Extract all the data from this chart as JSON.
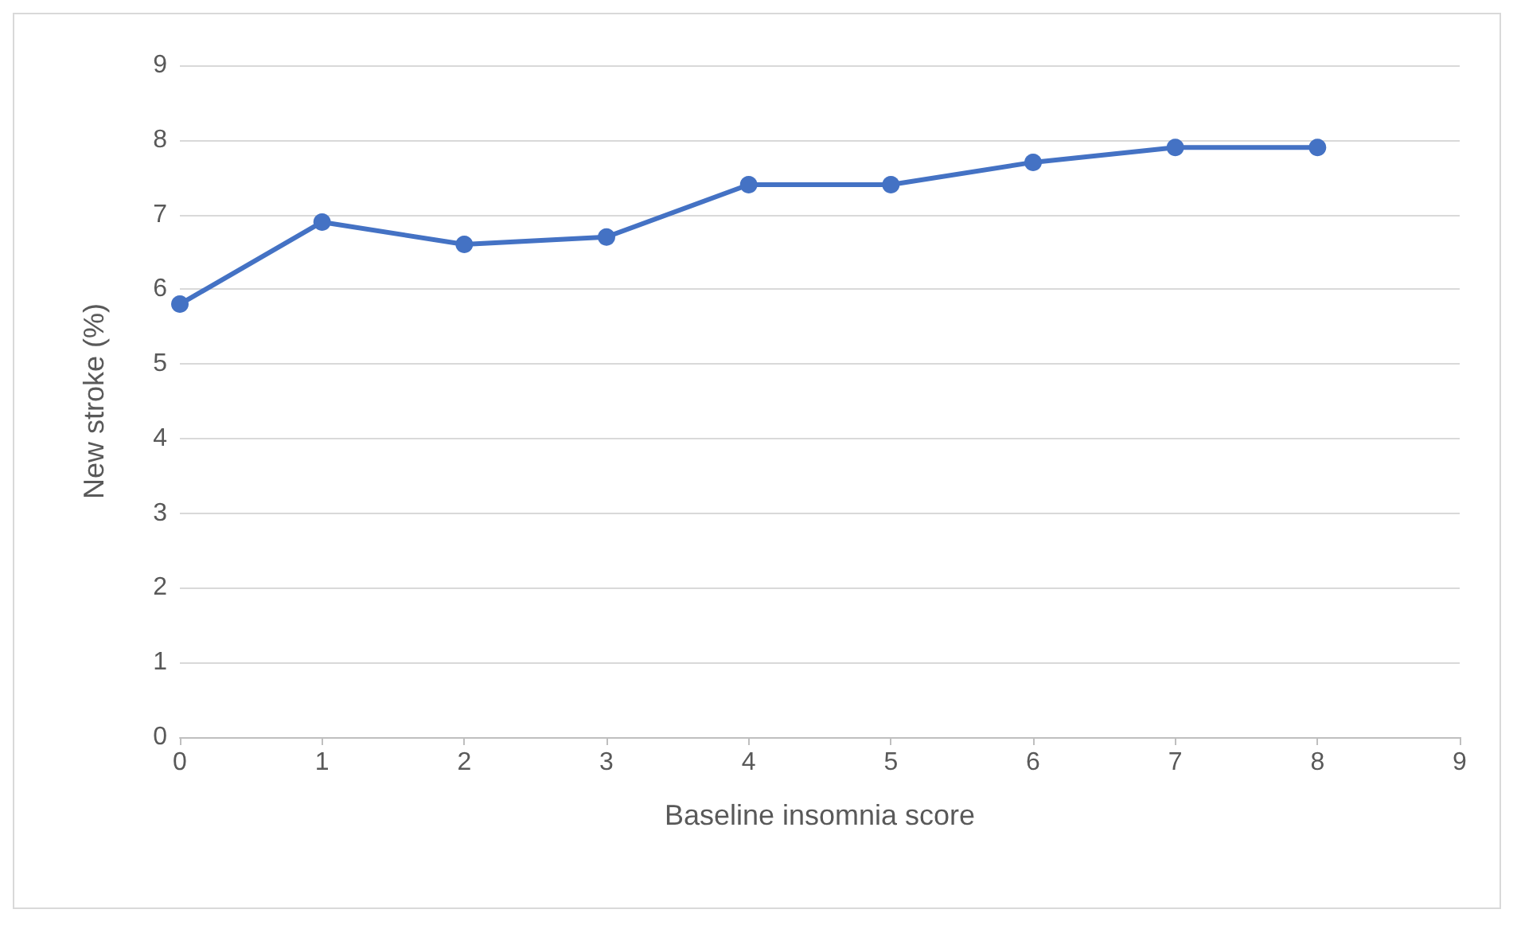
{
  "chart_data": {
    "type": "line",
    "xlabel": "Baseline insomnia score",
    "ylabel": "New stroke (%)",
    "x": [
      0,
      1,
      2,
      3,
      4,
      5,
      6,
      7,
      8
    ],
    "series": [
      {
        "color": "#4472c4",
        "values": [
          5.8,
          6.9,
          6.6,
          6.7,
          7.4,
          7.4,
          7.7,
          7.9,
          7.9
        ]
      }
    ],
    "xlim": [
      0,
      9
    ],
    "xticks": [
      0,
      1,
      2,
      3,
      4,
      5,
      6,
      7,
      8,
      9
    ],
    "ylim": [
      0,
      9
    ],
    "yticks": [
      0,
      1,
      2,
      3,
      4,
      5,
      6,
      7,
      8,
      9
    ],
    "grid": "y",
    "marker": "circle",
    "line_style": "solid"
  }
}
